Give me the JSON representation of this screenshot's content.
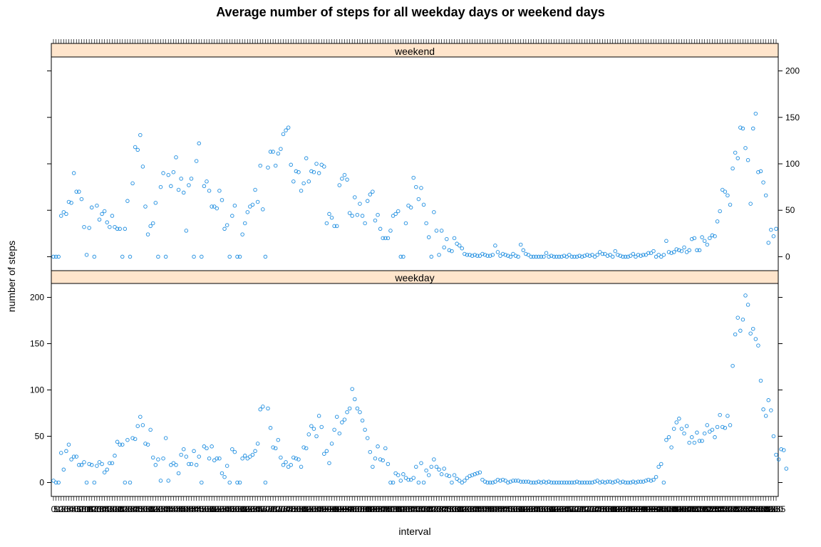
{
  "chart_data": {
    "type": "scatter",
    "title": "Average number of steps for all weekday days or weekend days",
    "xlabel": "interval",
    "ylabel": "number of steps",
    "ylim": [
      -15,
      215
    ],
    "yticks": [
      0,
      50,
      100,
      150,
      200
    ],
    "grid": false,
    "legend": "none",
    "x_tick_labels": "interval labels printed for every interval (overplotted)",
    "x_tick_count": 288,
    "point_color": "#1f8ee0",
    "strip_fill": "#ffe5cc",
    "panels": [
      {
        "name": "weekend",
        "values": [
          0,
          0,
          0,
          44,
          48,
          46,
          59,
          58,
          90,
          70,
          70,
          62,
          32,
          2,
          31,
          53,
          0,
          55,
          40,
          46,
          49,
          37,
          32,
          44,
          32,
          30,
          30,
          0,
          30,
          60,
          0,
          79,
          118,
          115,
          131,
          97,
          54,
          24,
          33,
          36,
          58,
          0,
          75,
          90,
          0,
          88,
          76,
          91,
          107,
          72,
          84,
          69,
          28,
          77,
          84,
          0,
          103,
          122,
          0,
          76,
          81,
          71,
          54,
          54,
          52,
          71,
          61,
          30,
          34,
          0,
          44,
          55,
          0,
          0,
          24,
          36,
          48,
          54,
          56,
          72,
          59,
          98,
          51,
          0,
          96,
          113,
          113,
          98,
          111,
          116,
          132,
          136,
          139,
          99,
          81,
          92,
          91,
          71,
          79,
          106,
          81,
          92,
          91,
          100,
          90,
          99,
          97,
          36,
          46,
          42,
          33,
          33,
          77,
          84,
          88,
          83,
          47,
          44,
          64,
          45,
          57,
          44,
          36,
          60,
          67,
          70,
          39,
          45,
          30,
          20,
          20,
          20,
          28,
          44,
          46,
          49,
          0,
          0,
          36,
          55,
          53,
          85,
          75,
          62,
          74,
          56,
          36,
          21,
          0,
          48,
          28,
          2,
          28,
          10,
          19,
          7,
          6,
          20,
          14,
          12,
          9,
          3,
          2,
          2,
          1,
          2,
          1,
          1,
          3,
          2,
          1,
          1,
          2,
          12,
          5,
          1,
          3,
          2,
          1,
          0,
          3,
          1,
          0,
          13,
          7,
          3,
          2,
          0,
          0,
          0,
          0,
          0,
          0,
          4,
          0,
          1,
          0,
          0,
          0,
          0,
          1,
          0,
          2,
          0,
          0,
          0,
          1,
          0,
          1,
          2,
          1,
          2,
          0,
          2,
          5,
          3,
          3,
          1,
          2,
          0,
          6,
          2,
          1,
          0,
          0,
          0,
          1,
          3,
          0,
          2,
          1,
          2,
          2,
          4,
          4,
          6,
          0,
          2,
          0,
          2,
          17,
          5,
          4,
          5,
          8,
          7,
          6,
          10,
          5,
          7,
          19,
          20,
          7,
          7,
          21,
          17,
          13,
          20,
          23,
          22,
          38,
          49,
          72,
          70,
          66,
          56,
          95,
          112,
          106,
          139,
          138,
          117,
          104,
          57,
          138,
          154,
          91,
          92,
          80,
          66,
          15,
          29,
          22,
          30
        ]
      },
      {
        "name": "weekday",
        "values": [
          2,
          0,
          0,
          32,
          14,
          34,
          41,
          25,
          28,
          28,
          19,
          19,
          22,
          0,
          20,
          19,
          0,
          18,
          22,
          20,
          11,
          14,
          21,
          21,
          29,
          44,
          41,
          41,
          0,
          46,
          0,
          48,
          47,
          61,
          71,
          62,
          42,
          41,
          57,
          27,
          19,
          25,
          2,
          26,
          48,
          2,
          19,
          21,
          19,
          10,
          30,
          36,
          28,
          20,
          20,
          34,
          19,
          28,
          0,
          39,
          37,
          26,
          39,
          24,
          26,
          26,
          10,
          6,
          18,
          0,
          36,
          33,
          0,
          0,
          26,
          29,
          26,
          28,
          30,
          34,
          42,
          79,
          82,
          0,
          80,
          59,
          38,
          37,
          46,
          27,
          19,
          22,
          17,
          19,
          27,
          26,
          25,
          17,
          38,
          37,
          52,
          61,
          58,
          50,
          72,
          60,
          31,
          34,
          21,
          42,
          57,
          71,
          53,
          65,
          68,
          76,
          80,
          101,
          90,
          80,
          76,
          67,
          57,
          48,
          33,
          17,
          26,
          39,
          25,
          24,
          37,
          20,
          0,
          0,
          10,
          8,
          2,
          9,
          5,
          3,
          3,
          5,
          17,
          0,
          21,
          0,
          13,
          8,
          17,
          25,
          17,
          14,
          9,
          15,
          8,
          7,
          0,
          8,
          4,
          2,
          0,
          2,
          5,
          7,
          8,
          9,
          10,
          11,
          3,
          1,
          0,
          0,
          0,
          1,
          3,
          2,
          3,
          2,
          0,
          1,
          2,
          2,
          2,
          1,
          1,
          1,
          1,
          0,
          0,
          0,
          1,
          0,
          1,
          0,
          1,
          0,
          0,
          0,
          0,
          0,
          0,
          0,
          0,
          0,
          0,
          1,
          0,
          0,
          0,
          0,
          0,
          0,
          1,
          2,
          0,
          1,
          0,
          1,
          1,
          0,
          1,
          2,
          0,
          1,
          0,
          0,
          0,
          1,
          0,
          1,
          1,
          1,
          2,
          3,
          2,
          3,
          6,
          17,
          20,
          0,
          46,
          49,
          38,
          58,
          65,
          69,
          58,
          53,
          61,
          43,
          49,
          43,
          54,
          45,
          45,
          53,
          62,
          55,
          57,
          49,
          60,
          73,
          60,
          59,
          72,
          62,
          126,
          160,
          178,
          164,
          176,
          202,
          192,
          161,
          166,
          155,
          148,
          110,
          79,
          72,
          89,
          78,
          50,
          30,
          25,
          36,
          35,
          15
        ]
      }
    ]
  }
}
